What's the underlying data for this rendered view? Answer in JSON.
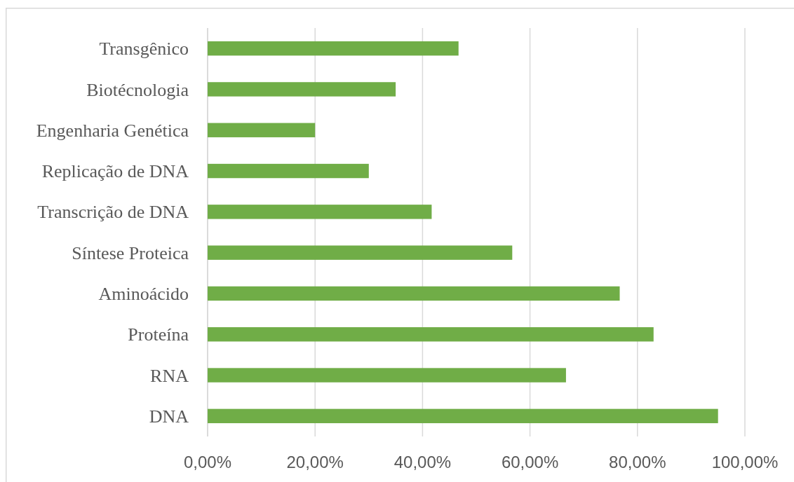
{
  "chart_data": {
    "type": "bar",
    "orientation": "horizontal",
    "categories": [
      "Transgênico",
      "Biotécnologia",
      "Engenharia Genética",
      "Replicação de DNA",
      "Transcrição de DNA",
      "Síntese Proteica",
      "Aminoácido",
      "Proteína",
      "RNA",
      "DNA"
    ],
    "values": [
      46.7,
      35,
      20,
      30,
      41.7,
      56.7,
      76.7,
      83,
      66.7,
      95
    ],
    "color": "#70ad47",
    "xlim": [
      0,
      100
    ],
    "xticks": [
      {
        "value": 0,
        "label": "0,00%"
      },
      {
        "value": 20,
        "label": "20,00%"
      },
      {
        "value": 40,
        "label": "40,00%"
      },
      {
        "value": 60,
        "label": "60,00%"
      },
      {
        "value": 80,
        "label": "80,00%"
      },
      {
        "value": 100,
        "label": "100,00%"
      }
    ],
    "grid": "x"
  }
}
